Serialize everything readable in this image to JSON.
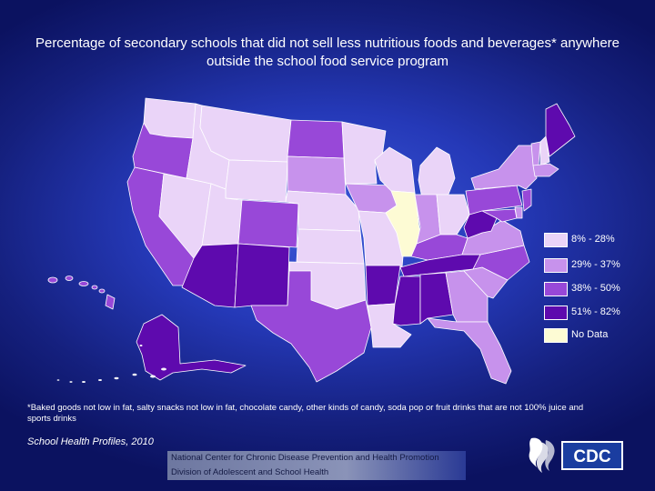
{
  "title": "Percentage of secondary schools that did not sell less nutritious foods and beverages* anywhere outside the school food service program",
  "colors": {
    "c1": "#ead4f8",
    "c2": "#c792ec",
    "c3": "#9848d8",
    "c4": "#5e0aae",
    "nd": "#fdfbd4"
  },
  "legend": [
    {
      "label": "8% - 28%",
      "color": "#ead4f8"
    },
    {
      "label": "29% - 37%",
      "color": "#c792ec"
    },
    {
      "label": "38% - 50%",
      "color": "#9848d8"
    },
    {
      "label": "51% - 82%",
      "color": "#5e0aae"
    },
    {
      "label": "No Data",
      "color": "#fdfbd4"
    }
  ],
  "states": {
    "WA": "c1",
    "OR": "c3",
    "CA": "c3",
    "NV": "c1",
    "ID": "c1",
    "MT": "c1",
    "WY": "c1",
    "UT": "c1",
    "AZ": "c4",
    "CO": "c3",
    "NM": "c4",
    "ND": "c3",
    "SD": "c2",
    "NE": "c1",
    "KS": "c1",
    "OK": "c1",
    "TX": "c3",
    "MN": "c1",
    "IA": "c2",
    "MO": "c1",
    "AR": "c4",
    "LA": "c1",
    "WI": "c1",
    "IL": "nd",
    "MI": "c1",
    "IN": "c2",
    "OH": "c1",
    "KY": "c3",
    "TN": "c4",
    "MS": "c4",
    "AL": "c4",
    "GA": "c2",
    "FL": "c2",
    "SC": "c2",
    "NC": "c3",
    "VA": "c2",
    "WV": "c4",
    "PA": "c3",
    "NY": "c2",
    "ME": "c4",
    "VT": "c2",
    "NH": "c1",
    "MA": "c2",
    "NJ": "c3",
    "MD": "c3",
    "DE": "c2",
    "AK": "c4",
    "HI": "c3"
  },
  "footnote": "*Baked goods not low in fat, salty snacks not low in fat, chocolate candy, other kinds of candy, soda pop or fruit drinks that are not 100% juice and sports drinks",
  "source": "School Health Profiles, 2010",
  "agency": {
    "line1": "National Center for Chronic Disease Prevention and Health Promotion",
    "line2": "Division of Adolescent and School Health"
  },
  "logo_text": "CDC"
}
